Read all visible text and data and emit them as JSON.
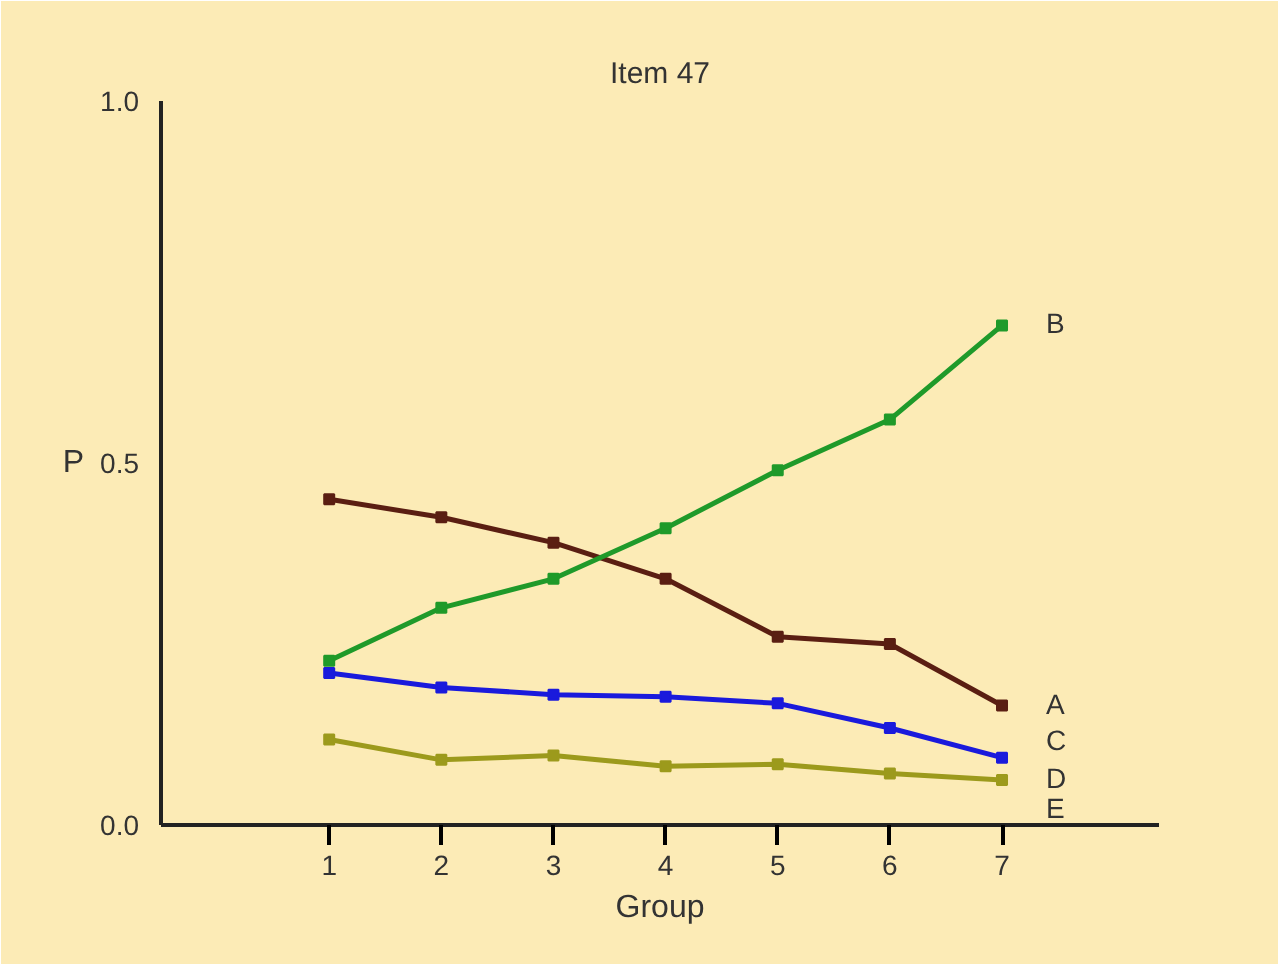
{
  "chart_data": {
    "type": "line",
    "title": "Item 47",
    "xlabel": "Group",
    "ylabel": "P",
    "x": [
      1,
      2,
      3,
      4,
      5,
      6,
      7
    ],
    "series": [
      {
        "name": "A",
        "color": "#5a1e12",
        "values": [
          0.45,
          0.425,
          0.39,
          0.34,
          0.26,
          0.25,
          0.165
        ]
      },
      {
        "name": "B",
        "color": "#1f9a2a",
        "values": [
          0.227,
          0.3,
          0.34,
          0.41,
          0.49,
          0.56,
          0.69
        ]
      },
      {
        "name": "C",
        "color": "#1a1adc",
        "values": [
          0.21,
          0.19,
          0.18,
          0.177,
          0.168,
          0.134,
          0.093
        ]
      },
      {
        "name": "D",
        "color": "#9c9a1c",
        "values": [
          0.118,
          0.09,
          0.096,
          0.081,
          0.084,
          0.071,
          0.062
        ]
      }
    ],
    "annotations": [
      "E"
    ],
    "xlim": [
      -0.5,
      8.4
    ],
    "ylim": [
      0,
      1.0
    ],
    "xticks": [
      1,
      2,
      3,
      4,
      5,
      6,
      7
    ],
    "yticks": [
      {
        "value": 0,
        "label": "0.0"
      },
      {
        "value": 0.5,
        "label": "0.5"
      },
      {
        "value": 1.0,
        "label": "1.0"
      }
    ],
    "marker": "square",
    "line_style": "solid",
    "grid": false,
    "legend": false
  }
}
